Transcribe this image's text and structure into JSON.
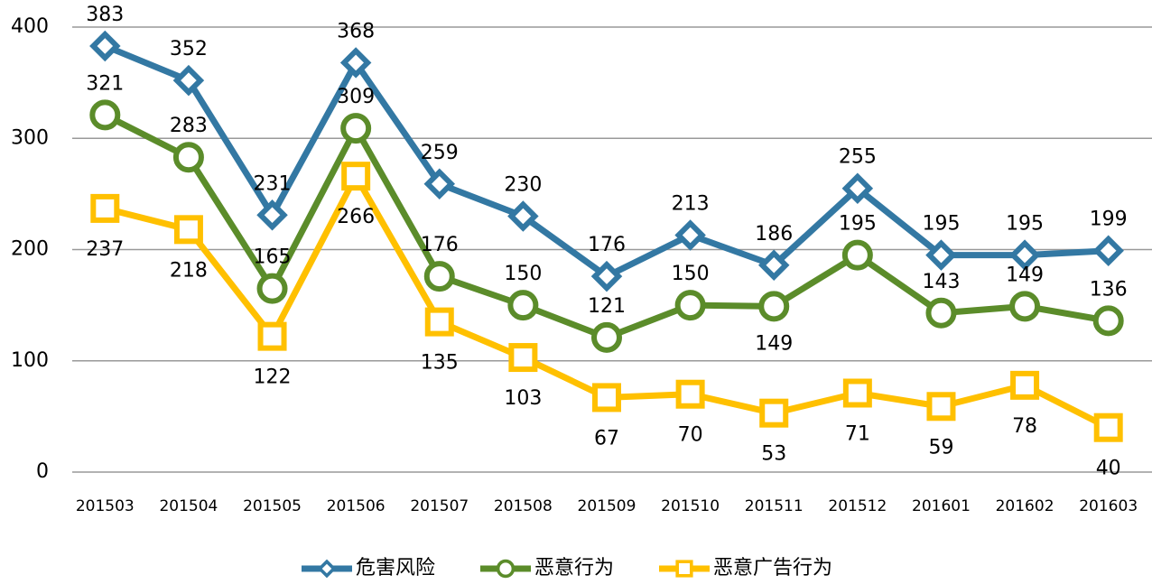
{
  "chart_data": {
    "type": "line",
    "categories": [
      "201503",
      "201504",
      "201505",
      "201506",
      "201507",
      "201508",
      "201509",
      "201510",
      "201511",
      "201512",
      "201601",
      "201602",
      "201603"
    ],
    "series": [
      {
        "name": "危害风险",
        "color": "#3378a3",
        "marker": "diamond",
        "values": [
          383,
          352,
          231,
          368,
          259,
          230,
          176,
          213,
          186,
          255,
          195,
          195,
          199
        ]
      },
      {
        "name": "恶意行为",
        "color": "#5b8c2a",
        "marker": "circle",
        "values": [
          321,
          283,
          165,
          309,
          176,
          150,
          121,
          150,
          149,
          195,
          143,
          149,
          136
        ]
      },
      {
        "name": "恶意广告行为",
        "color": "#ffc000",
        "marker": "square",
        "values": [
          237,
          218,
          122,
          266,
          135,
          103,
          67,
          70,
          53,
          71,
          59,
          78,
          40
        ]
      }
    ],
    "ylim": [
      0,
      400
    ],
    "yticks": [
      0,
      100,
      200,
      300,
      400
    ],
    "grid": true,
    "legend": "bottom"
  }
}
